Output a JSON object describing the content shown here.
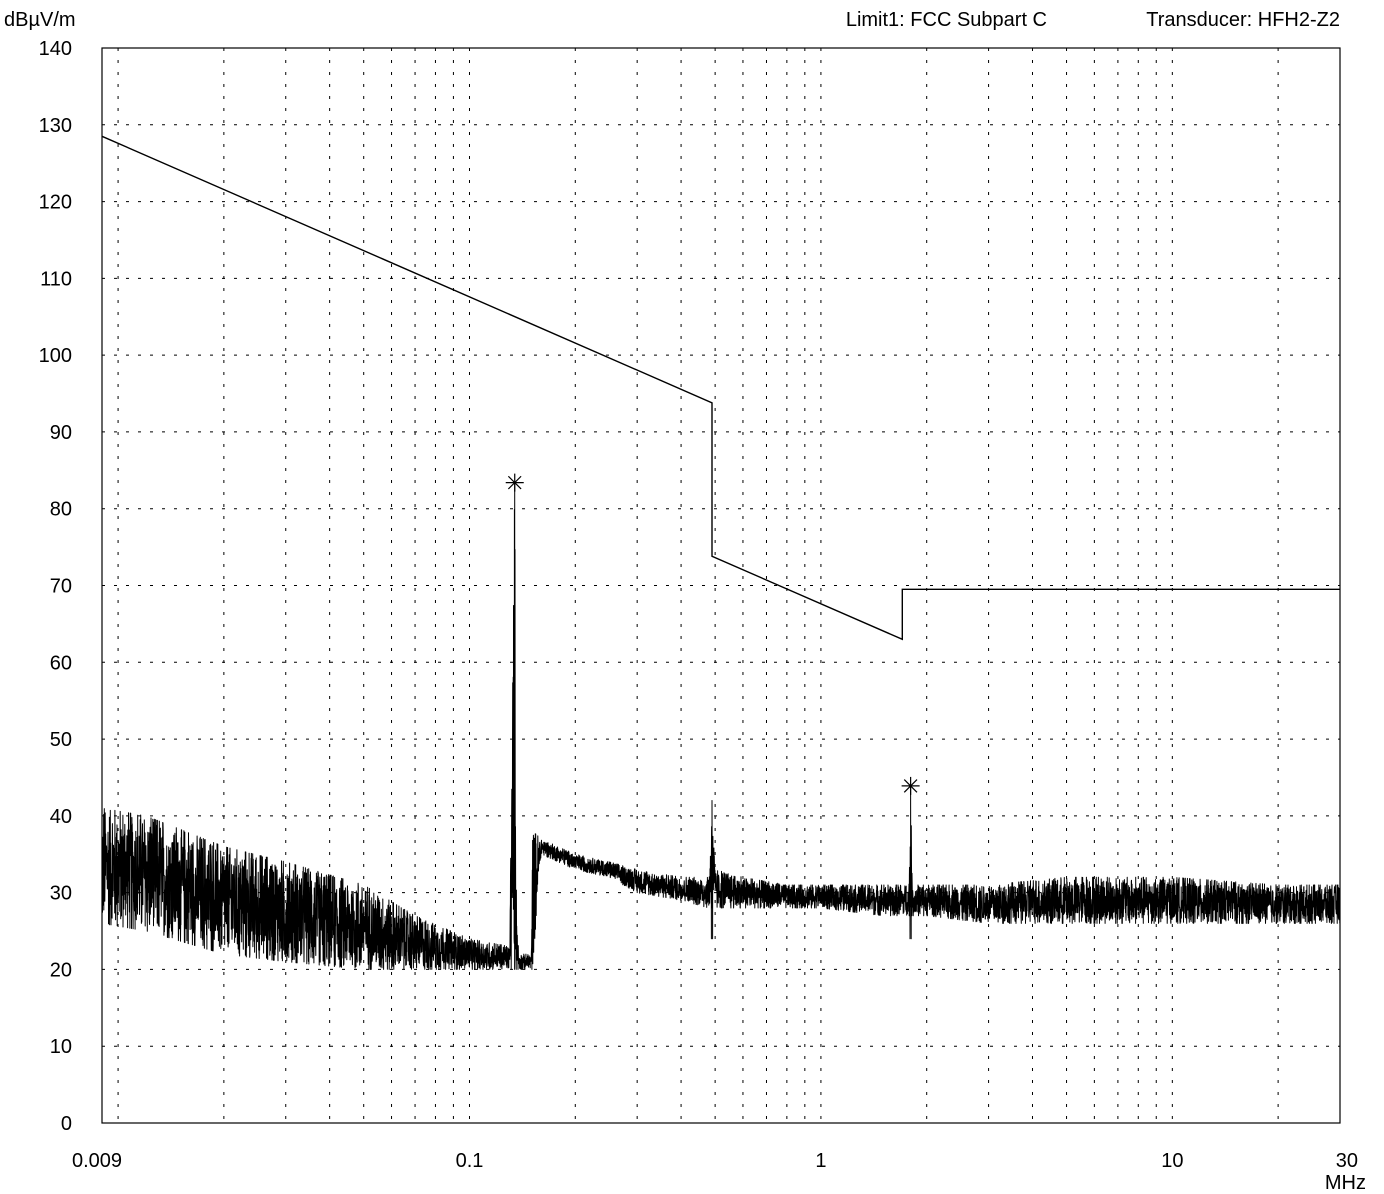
{
  "chart_data": {
    "type": "line",
    "title": "",
    "ylabel": "dBµV/m",
    "xlabel": "MHz",
    "header_right_1": "Limit1: FCC Subpart C",
    "header_right_2": "Transducer: HFH2-Z2",
    "x_scale": "log",
    "xlim": [
      0.009,
      30
    ],
    "ylim": [
      0,
      140
    ],
    "grid": true,
    "x_ticks": [
      0.009,
      0.1,
      1,
      10,
      30
    ],
    "x_tick_labels": [
      "0.009",
      "0.1",
      "1",
      "10",
      "30"
    ],
    "y_ticks": [
      0,
      10,
      20,
      30,
      40,
      50,
      60,
      70,
      80,
      90,
      100,
      110,
      120,
      130,
      140
    ],
    "y_tick_labels": [
      "0",
      "10",
      "20",
      "30",
      "40",
      "50",
      "60",
      "70",
      "80",
      "90",
      "100",
      "110",
      "120",
      "130",
      "140"
    ],
    "series": [
      {
        "name": "",
        "role": "limit",
        "color": "#000000",
        "x": [
          0.009,
          0.49,
          0.49,
          1.705,
          1.705,
          30
        ],
        "y": [
          128.5,
          93.8,
          73.8,
          63.0,
          69.5,
          69.5
        ]
      },
      {
        "name": "",
        "role": "measurement-envelope",
        "color": "#000000",
        "x": [
          0.009,
          0.012,
          0.02,
          0.03,
          0.05,
          0.07,
          0.1,
          0.13,
          0.1345,
          0.136,
          0.138,
          0.15,
          0.151,
          0.16,
          0.2,
          0.25,
          0.3,
          0.4,
          0.48,
          0.49,
          0.5,
          0.6,
          0.8,
          1.0,
          1.5,
          1.78,
          1.8,
          1.82,
          2.0,
          3.0,
          5.0,
          10.0,
          20.0,
          30.0
        ],
        "y_max": [
          41,
          40,
          36,
          34,
          31,
          27,
          24,
          23,
          83.4,
          30,
          22,
          22,
          38,
          37,
          35,
          34,
          33,
          32,
          32,
          42,
          33,
          32,
          31,
          31,
          31,
          31,
          43.9,
          31,
          31,
          31,
          32,
          32,
          31,
          31
        ],
        "y_min": [
          26,
          25,
          22,
          21,
          20,
          20,
          20,
          20,
          20,
          20,
          20,
          20,
          20,
          35,
          33,
          32,
          30,
          29,
          28,
          28,
          28,
          28,
          28,
          28,
          27,
          27,
          27,
          27,
          27,
          26,
          26,
          26,
          26,
          26
        ]
      }
    ],
    "markers": [
      {
        "x": 0.1345,
        "y": 83.4,
        "symbol": "star"
      },
      {
        "x": 1.8,
        "y": 43.9,
        "symbol": "star"
      }
    ]
  }
}
